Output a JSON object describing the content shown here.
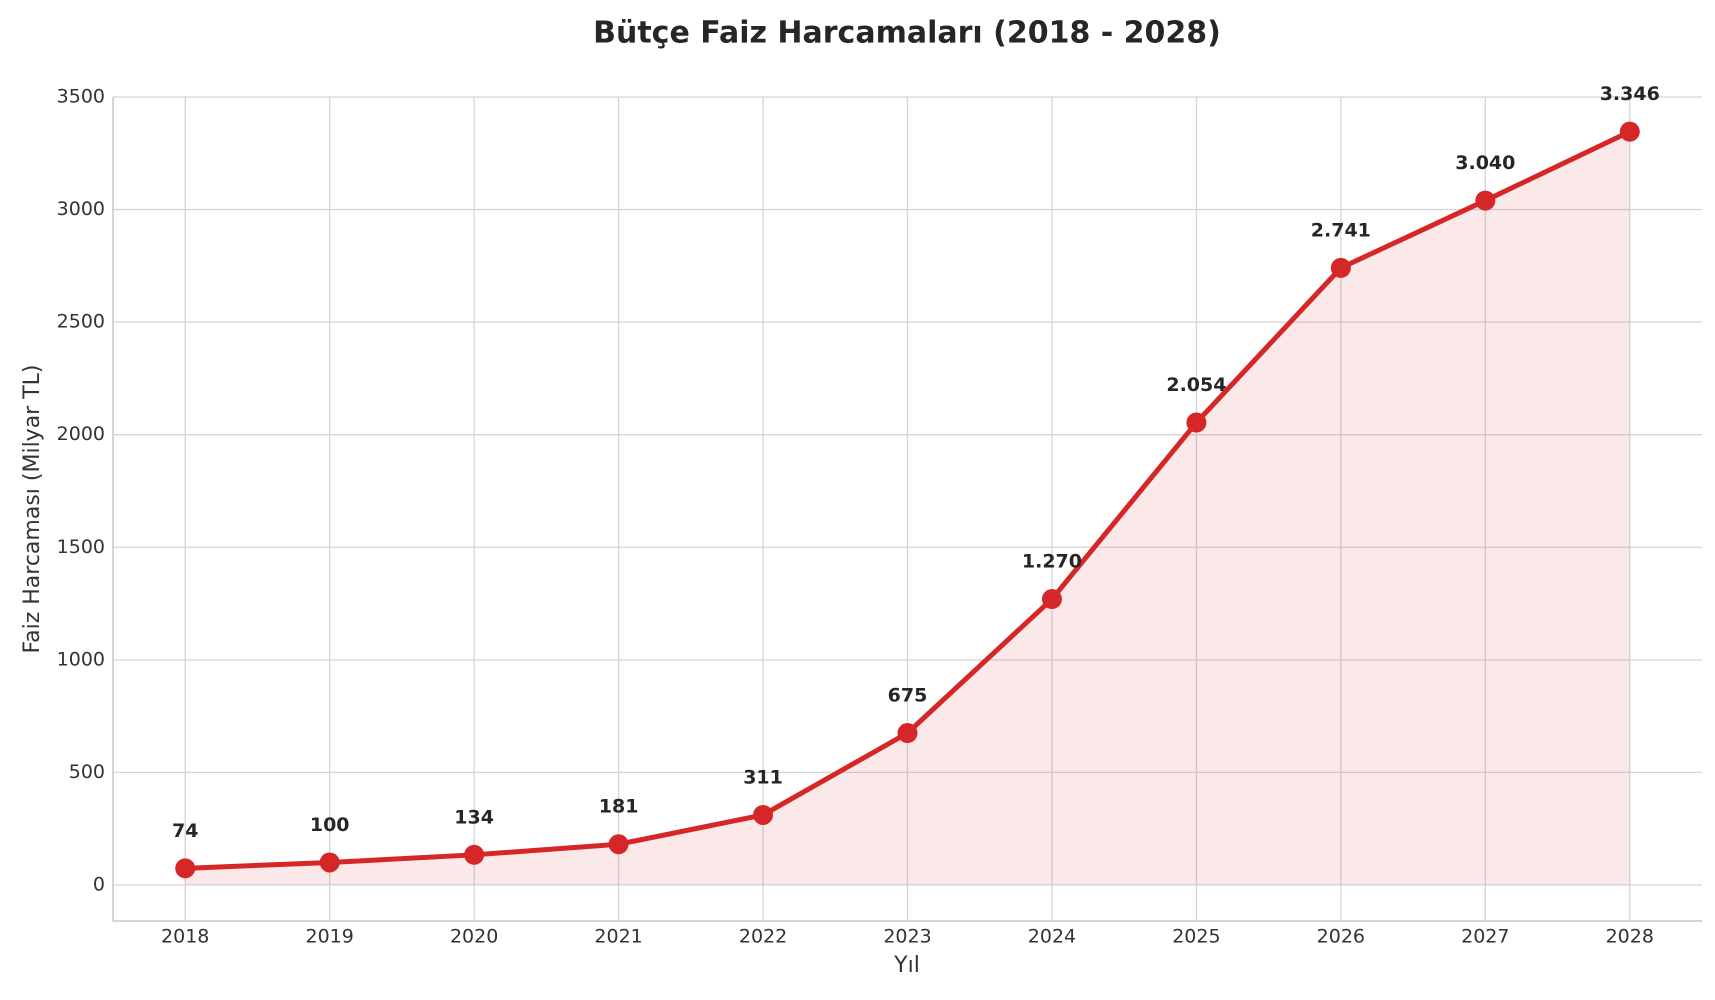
{
  "chart_data": {
    "type": "line",
    "title": "Bütçe Faiz Harcamaları (2018 - 2028)",
    "x_label": "Yıl",
    "y_label": "Faiz Harcaması (Milyar TL)",
    "x": [
      2018,
      2019,
      2020,
      2021,
      2022,
      2023,
      2024,
      2025,
      2026,
      2027,
      2028
    ],
    "values": [
      74,
      100,
      134,
      181,
      311,
      675,
      1270,
      2054,
      2741,
      3040,
      3346
    ],
    "value_labels": [
      "74",
      "100",
      "134",
      "181",
      "311",
      "675",
      "1.270",
      "2.054",
      "2.741",
      "3.040",
      "3.346"
    ],
    "color": "#d62728",
    "area_fill": true,
    "xlim": [
      2017.5,
      2028.5
    ],
    "xticks": [
      2018,
      2019,
      2020,
      2021,
      2022,
      2023,
      2024,
      2025,
      2026,
      2027,
      2028
    ],
    "ylim": [
      -160,
      3500
    ],
    "yticks": [
      0,
      500,
      1000,
      1500,
      2000,
      2500,
      3000,
      3500
    ],
    "grid": true
  }
}
